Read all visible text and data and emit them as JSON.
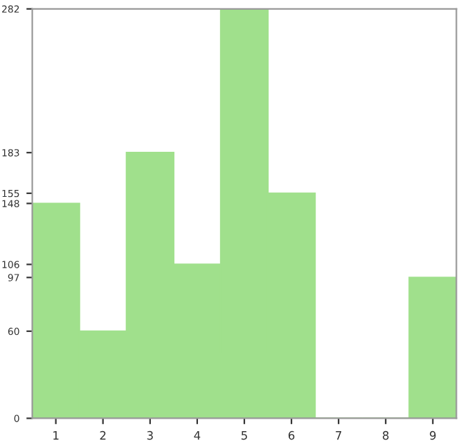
{
  "chart_data": {
    "type": "bar",
    "categories": [
      "1",
      "2",
      "3",
      "4",
      "5",
      "6",
      "7",
      "8",
      "9"
    ],
    "values": [
      148,
      60,
      183,
      106,
      282,
      155,
      0,
      0,
      97
    ],
    "color": "#a0e08c",
    "ylim": [
      0,
      282
    ],
    "yticks": [
      0,
      60,
      97,
      106,
      148,
      155,
      183,
      282
    ],
    "grid": false
  }
}
